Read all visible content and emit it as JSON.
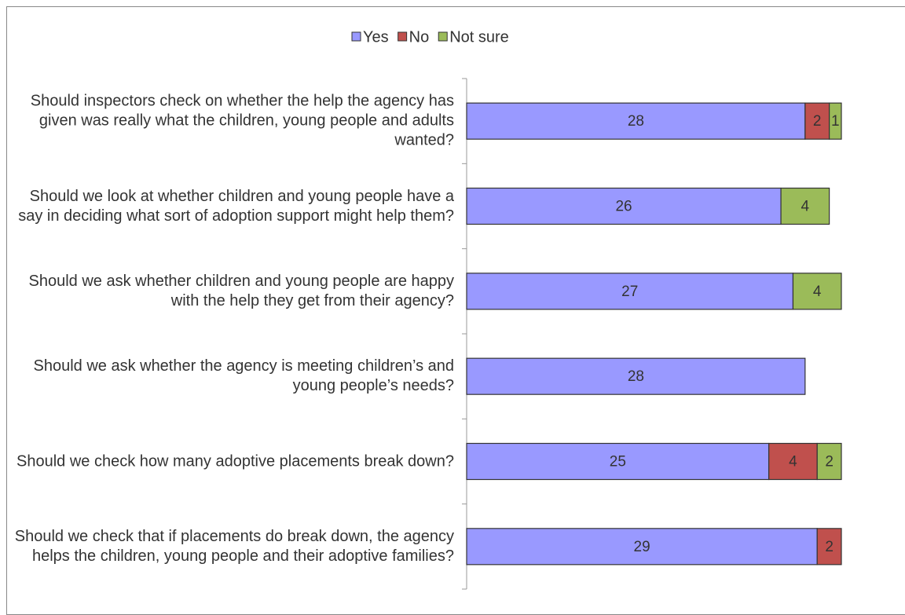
{
  "chart_data": {
    "type": "stacked_bar_horizontal",
    "categories": [
      "Should inspectors check on whether the help the agency has given was really what the children, young people and adults wanted?",
      "Should we look at whether children and young people have a say in deciding what sort of adoption support might help them?",
      "Should we ask whether children and young people are happy with the help they get from their agency?",
      "Should we ask whether the agency is meeting children’s and young people’s needs?",
      "Should we check how many adoptive placements break down?",
      "Should we check that if placements do break down, the agency helps the children, young people and their adoptive families?"
    ],
    "series": [
      {
        "name": "Yes",
        "color": "#9999ff",
        "values": [
          28,
          26,
          27,
          28,
          25,
          29
        ]
      },
      {
        "name": "No",
        "color": "#c0504d",
        "values": [
          2,
          null,
          null,
          null,
          4,
          2
        ]
      },
      {
        "name": "Not sure",
        "color": "#9bbb59",
        "values": [
          1,
          4,
          4,
          null,
          2,
          null
        ]
      }
    ],
    "xlim": [
      0,
      31
    ],
    "legend": "top"
  }
}
